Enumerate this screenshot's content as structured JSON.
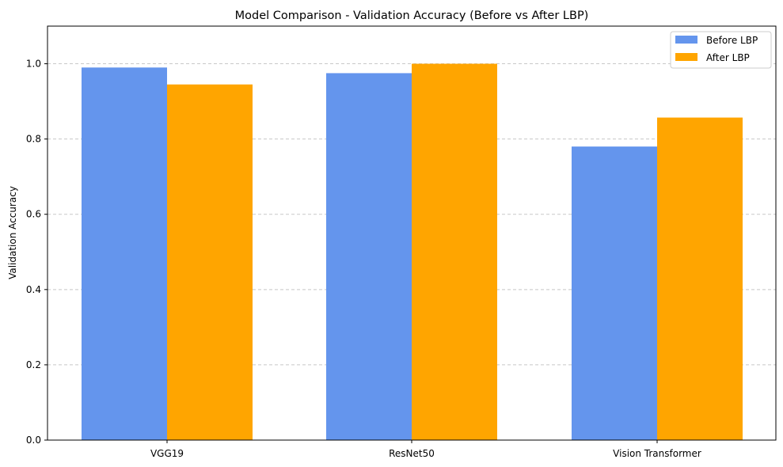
{
  "chart_data": {
    "type": "bar",
    "title": "Model Comparison - Validation Accuracy (Before vs After LBP)",
    "xlabel": "",
    "ylabel": "Validation Accuracy",
    "categories": [
      "VGG19",
      "ResNet50",
      "Vision Transformer"
    ],
    "series": [
      {
        "name": "Before LBP",
        "color": "#6495ed",
        "values": [
          0.99,
          0.975,
          0.78
        ]
      },
      {
        "name": "After LBP",
        "color": "#ffa500",
        "values": [
          0.945,
          1.0,
          0.857
        ]
      }
    ],
    "ylim": [
      0,
      1.1
    ],
    "yticks": [
      "0.0",
      "0.2",
      "0.4",
      "0.6",
      "0.8",
      "1.0"
    ],
    "grid": "y-dashed",
    "legend_position": "top-right"
  }
}
